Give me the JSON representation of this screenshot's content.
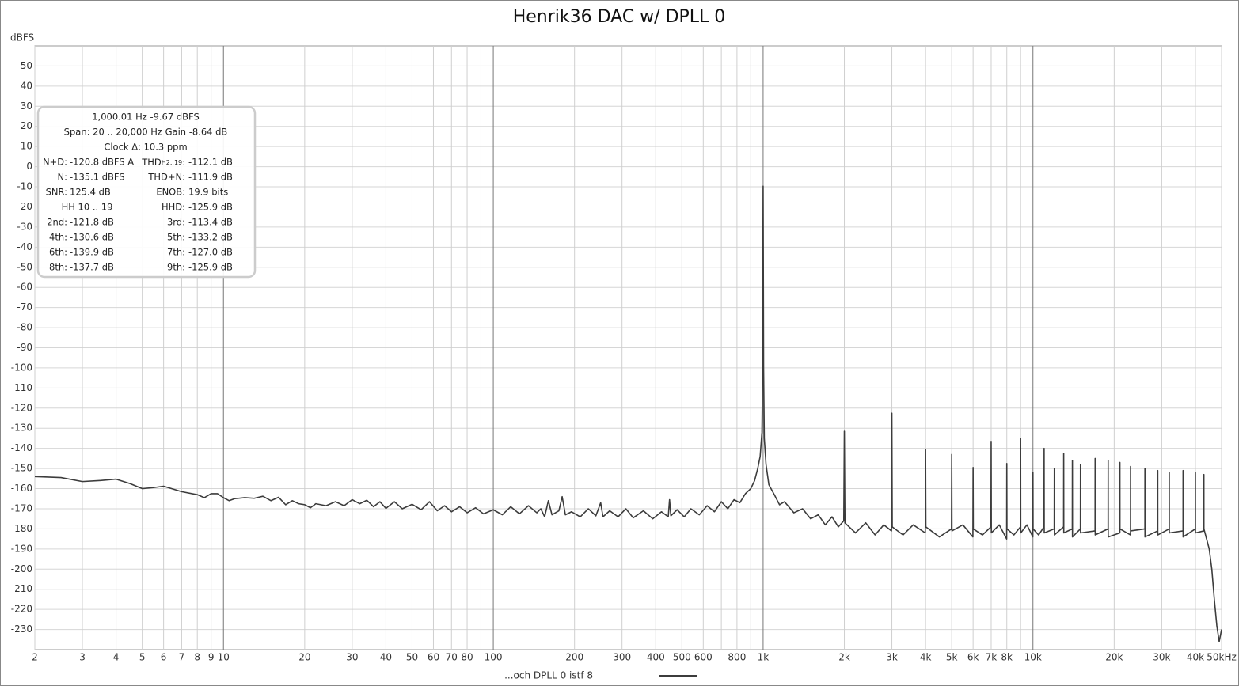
{
  "chart_data": {
    "type": "line",
    "title": "Henrik36 DAC w/ DPLL 0",
    "ylabel": "dBFS",
    "xscale": "log",
    "grid": true,
    "xlim": [
      2,
      50000
    ],
    "ylim": [
      -240,
      60
    ],
    "yticks": [
      -230,
      -220,
      -210,
      -200,
      -190,
      -180,
      -170,
      -160,
      -150,
      -140,
      -130,
      -120,
      -110,
      -100,
      -90,
      -80,
      -70,
      -60,
      -50,
      -40,
      -30,
      -20,
      -10,
      0,
      10,
      20,
      30,
      40,
      50
    ],
    "xticks": [
      2,
      3,
      4,
      5,
      6,
      7,
      8,
      9,
      10,
      20,
      30,
      40,
      50,
      60,
      70,
      80,
      {
        "value": 90,
        "label": null
      },
      100,
      200,
      300,
      400,
      500,
      600,
      {
        "value": 700,
        "label": null
      },
      800,
      {
        "value": 900,
        "label": null
      },
      {
        "value": 1000,
        "label": "1k"
      },
      {
        "value": 2000,
        "label": "2k"
      },
      {
        "value": 3000,
        "label": "3k"
      },
      {
        "value": 4000,
        "label": "4k"
      },
      {
        "value": 5000,
        "label": "5k"
      },
      {
        "value": 6000,
        "label": "6k"
      },
      {
        "value": 7000,
        "label": "7k"
      },
      {
        "value": 8000,
        "label": "8k"
      },
      {
        "value": 9000,
        "label": null
      },
      {
        "value": 10000,
        "label": "10k"
      },
      {
        "value": 20000,
        "label": "20k"
      },
      {
        "value": 30000,
        "label": "30k"
      },
      {
        "value": 40000,
        "label": "40k"
      },
      {
        "value": 50000,
        "label": "50kHz"
      }
    ],
    "series": [
      {
        "name": "...och DPLL 0 istf 8",
        "color": "#3c3c3c",
        "x": [
          2,
          2.5,
          3,
          3.5,
          4,
          4.5,
          5,
          5.5,
          6,
          7,
          8,
          8.5,
          9,
          9.5,
          10,
          10.5,
          11,
          12,
          13,
          14,
          15,
          16,
          17,
          18,
          19,
          20,
          21,
          22,
          24,
          26,
          28,
          30,
          32,
          34,
          36,
          38,
          40,
          43,
          46,
          50,
          54,
          58,
          62,
          66,
          70,
          75,
          80,
          86,
          92,
          100,
          108,
          116,
          125,
          135,
          145,
          150,
          155,
          160,
          165,
          175,
          180,
          185,
          195,
          210,
          225,
          240,
          250,
          255,
          270,
          290,
          310,
          330,
          360,
          390,
          420,
          445,
          450,
          455,
          480,
          510,
          540,
          580,
          620,
          660,
          700,
          740,
          780,
          820,
          860,
          900,
          930,
          955,
          975,
          990,
          996,
          1000,
          1004,
          1010,
          1025,
          1050,
          1100,
          1150,
          1200,
          1300,
          1400,
          1500,
          1600,
          1700,
          1800,
          1900,
          1990,
          2000,
          2010,
          2200,
          2400,
          2600,
          2800,
          2990,
          3000,
          3010,
          3300,
          3600,
          3990,
          4000,
          4010,
          4500,
          4990,
          5000,
          5010,
          5500,
          5990,
          6000,
          6010,
          6500,
          6990,
          7000,
          7010,
          7500,
          7990,
          8000,
          8010,
          8500,
          8990,
          9000,
          9010,
          9500,
          9990,
          10000,
          10010,
          10500,
          10990,
          11000,
          11010,
          11990,
          12000,
          12010,
          12990,
          13000,
          13010,
          13990,
          14000,
          14010,
          14990,
          15000,
          15010,
          16990,
          17000,
          17010,
          18990,
          19000,
          19010,
          20990,
          21000,
          21010,
          22990,
          23000,
          23010,
          25990,
          26000,
          26010,
          28990,
          29000,
          29010,
          31990,
          32000,
          32010,
          35990,
          36000,
          36010,
          39990,
          40000,
          40010,
          42990,
          43000,
          43010,
          44000,
          45000,
          46000,
          47000,
          48000,
          49000,
          50000
        ],
        "values": [
          -154,
          -154.5,
          -156.5,
          -156,
          -155.3,
          -157.5,
          -160,
          -159.5,
          -158.8,
          -161.5,
          -163,
          -164.5,
          -162.5,
          -162.5,
          -164.5,
          -166,
          -165,
          -164.5,
          -164.8,
          -163.8,
          -166,
          -164.3,
          -168,
          -166,
          -167.5,
          -168,
          -169.5,
          -167.5,
          -168.5,
          -166.5,
          -168.5,
          -165.5,
          -167.5,
          -165.8,
          -169,
          -166.5,
          -169.8,
          -166.5,
          -170,
          -167.8,
          -170.5,
          -166.5,
          -171,
          -168.5,
          -171.5,
          -169,
          -172,
          -169.5,
          -172.5,
          -170.5,
          -173,
          -169,
          -172.5,
          -168.5,
          -172,
          -170,
          -174,
          -166,
          -173,
          -171,
          -164,
          -173,
          -171.5,
          -174,
          -170,
          -173.5,
          -167,
          -174,
          -171,
          -174,
          -170,
          -174.5,
          -171,
          -175,
          -171.5,
          -174,
          -165.5,
          -173.5,
          -170.5,
          -174,
          -170,
          -173,
          -168.5,
          -171.5,
          -166.5,
          -170,
          -165.5,
          -167,
          -162.5,
          -160,
          -156,
          -150,
          -144,
          -132,
          -100,
          -9.67,
          -100,
          -135,
          -148,
          -158,
          -163,
          -168,
          -166.5,
          -172,
          -170,
          -175,
          -173,
          -178,
          -174,
          -179,
          -176,
          -131.5,
          -177,
          -182,
          -177,
          -183,
          -178,
          -181,
          -122.5,
          -179,
          -183,
          -178,
          -182,
          -140.5,
          -179,
          -184,
          -180,
          -143,
          -181,
          -178,
          -184,
          -149.5,
          -180,
          -183,
          -179,
          -136.5,
          -182,
          -178,
          -185,
          -147.5,
          -180,
          -183,
          -179,
          -135,
          -182,
          -178,
          -184,
          -152,
          -180,
          -183,
          -179,
          -140,
          -182,
          -180,
          -150,
          -183,
          -179,
          -142.5,
          -182,
          -180,
          -146,
          -184,
          -180,
          -148,
          -182,
          -181,
          -145,
          -183,
          -180,
          -146,
          -184,
          -182,
          -147,
          -180,
          -183,
          -149,
          -181,
          -180,
          -150,
          -184,
          -181,
          -151,
          -183,
          -180,
          -152,
          -182,
          -181,
          -151,
          -184,
          -180,
          -152,
          -182,
          -181,
          -153,
          -180,
          -185,
          -190,
          -200,
          -215,
          -228,
          -236,
          -230
        ]
      }
    ],
    "info_box": {
      "lines": [
        "1,000.01 Hz  -9.67 dBFS",
        "Span: 20 .. 20,000 Hz   Gain -8.64 dB",
        "Clock Δ: 10.3 ppm"
      ],
      "rows": [
        {
          "left": [
            "N+D:",
            "-120.8 dBFS A"
          ],
          "right": [
            "THD",
            "H2..19",
            ":",
            "-112.1 dB"
          ]
        },
        {
          "left": [
            "N:",
            "-135.1 dBFS"
          ],
          "right": [
            "THD+N:",
            "-111.9 dB"
          ]
        },
        {
          "left": [
            "SNR:",
            "125.4 dB"
          ],
          "right": [
            "ENOB:",
            "19.9 bits"
          ]
        },
        {
          "left": [
            "HH 10 .. 19"
          ],
          "right": [
            "HHD:",
            "-125.9 dB"
          ]
        },
        {
          "left": [
            "2nd:",
            "-121.8 dB"
          ],
          "right": [
            "3rd:",
            "-113.4 dB"
          ]
        },
        {
          "left": [
            "4th:",
            "-130.6 dB"
          ],
          "right": [
            "5th:",
            "-133.2 dB"
          ]
        },
        {
          "left": [
            "6th:",
            "-139.9 dB"
          ],
          "right": [
            "7th:",
            "-127.0 dB"
          ]
        },
        {
          "left": [
            "8th:",
            "-137.7 dB"
          ],
          "right": [
            "9th:",
            "-125.9 dB"
          ]
        }
      ]
    }
  }
}
